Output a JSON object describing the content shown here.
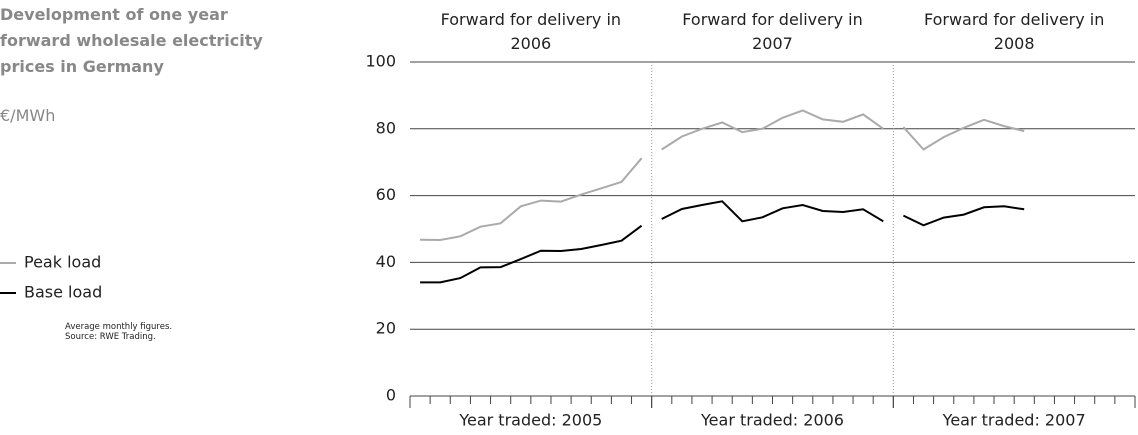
{
  "chart_data": {
    "type": "line",
    "title": "Development of one year forward wholesale electricity prices in Germany",
    "unit": "€/MWh",
    "notes": [
      "Average monthly figures.",
      "Source: RWE Trading."
    ],
    "ylim": [
      0,
      100
    ],
    "yticks": [
      0,
      20,
      40,
      60,
      80,
      100
    ],
    "grid": true,
    "panels": [
      {
        "header": "Forward for delivery in 2006",
        "xlabel": "Year traded: 2005",
        "categories": [
          null,
          null,
          null,
          null,
          null,
          null,
          null,
          null,
          null,
          null,
          null,
          null
        ]
      },
      {
        "header": "Forward for delivery in 2007",
        "xlabel": "Year traded: 2006",
        "categories": [
          null,
          null,
          null,
          null,
          null,
          null,
          null,
          null,
          null,
          null,
          null,
          null
        ]
      },
      {
        "header": "Forward for delivery in 2008",
        "xlabel": "Year traded: 2007",
        "categories": [
          null,
          null,
          null,
          null,
          null,
          null,
          null,
          null,
          null,
          null,
          null,
          null
        ]
      }
    ],
    "series": [
      {
        "name": "Peak load",
        "color": "#aaaaaa",
        "values": [
          [
            46.8,
            46.7,
            47.8,
            50.7,
            51.7,
            56.8,
            58.5,
            58.2,
            60.3,
            62.2,
            64.1,
            71.2
          ],
          [
            73.8,
            77.7,
            80,
            81.9,
            79,
            80,
            83.3,
            85.5,
            82.8,
            82.1,
            84.3,
            80
          ],
          [
            80.5,
            73.8,
            77.5,
            80.3,
            82.7,
            80.8,
            79.3,
            null,
            null,
            null,
            null,
            null
          ]
        ]
      },
      {
        "name": "Base load",
        "color": "#000000",
        "values": [
          [
            34,
            34,
            35.3,
            38.5,
            38.6,
            41,
            43.5,
            43.4,
            44,
            45.2,
            46.5,
            51
          ],
          [
            53,
            56,
            57.2,
            58.3,
            52.3,
            53.5,
            56.2,
            57.2,
            55.4,
            55.1,
            55.9,
            52.3
          ],
          [
            54,
            51.1,
            53.4,
            54.3,
            56.5,
            56.8,
            55.9,
            null,
            null,
            null,
            null,
            null
          ]
        ]
      }
    ]
  }
}
